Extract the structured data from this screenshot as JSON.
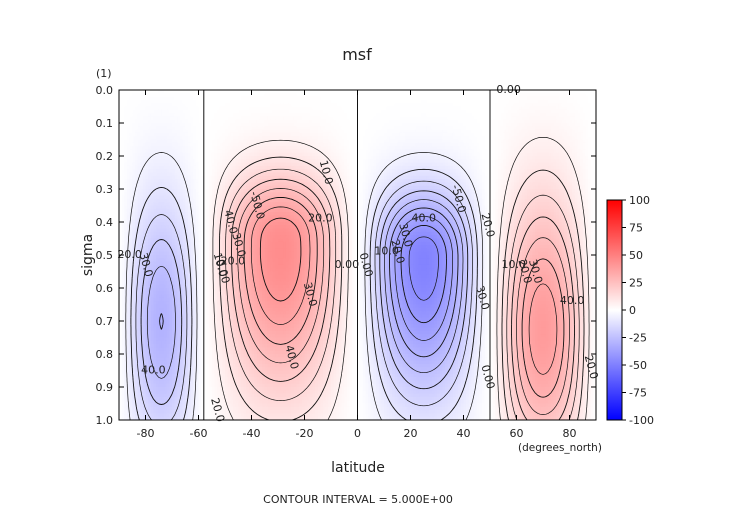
{
  "chart_data": {
    "type": "heatmap",
    "title": "msf",
    "units_label": "(1)",
    "xlabel": "latitude",
    "x_units": "(degrees_north)",
    "ylabel": "sigma",
    "footer": "CONTOUR INTERVAL = 5.000E+00",
    "xlim": [
      -90,
      90
    ],
    "ylim": [
      0.0,
      1.0
    ],
    "y_inverted": true,
    "x_ticks": [
      -80,
      -60,
      -40,
      -20,
      0,
      20,
      40,
      60,
      80
    ],
    "x_tick_labels": [
      "-80",
      "-60",
      "-40",
      "-20",
      "0",
      "20",
      "40",
      "60",
      "80"
    ],
    "y_ticks": [
      0.0,
      0.1,
      0.2,
      0.3,
      0.4,
      0.5,
      0.6,
      0.7,
      0.8,
      0.9,
      1.0
    ],
    "y_tick_labels": [
      "0.0",
      "0.1",
      "0.2",
      "0.3",
      "0.4",
      "0.5",
      "0.6",
      "0.7",
      "0.8",
      "0.9",
      "1.0"
    ],
    "colorbar": {
      "range": [
        -100,
        100
      ],
      "ticks": [
        100,
        75,
        50,
        25,
        0,
        -25,
        -50,
        -75,
        -100
      ],
      "tick_labels": [
        "100",
        "75",
        "50",
        "25",
        "0",
        "-25",
        "-50",
        "-75",
        "-100"
      ],
      "colors": {
        "negative": "#0000ff",
        "zero": "#ffffff",
        "positive": "#ff0000"
      }
    },
    "contour_interval": 5.0,
    "cells": [
      {
        "lat_range": [
          -90,
          -58
        ],
        "center": [
          -78,
          0.75
        ],
        "peak": -45
      },
      {
        "lat_range": [
          -58,
          0
        ],
        "center": [
          -33,
          0.45
        ],
        "peak": 65
      },
      {
        "lat_range": [
          0,
          50
        ],
        "center": [
          33,
          0.5
        ],
        "peak": -70
      },
      {
        "lat_range": [
          50,
          90
        ],
        "center": [
          77,
          0.8
        ],
        "peak": 60
      }
    ],
    "contour_labels": [
      {
        "text": "0.00",
        "lat": 57,
        "sigma": 0.0
      },
      {
        "text": "10.0",
        "lat": -12,
        "sigma": 0.25
      },
      {
        "text": "-50.0",
        "lat": -38,
        "sigma": 0.35
      },
      {
        "text": "20.0",
        "lat": -14,
        "sigma": 0.39
      },
      {
        "text": "40.0",
        "lat": -48,
        "sigma": 0.4
      },
      {
        "text": "30.0",
        "lat": -45,
        "sigma": 0.47
      },
      {
        "text": "20.0",
        "lat": -47,
        "sigma": 0.52
      },
      {
        "text": "10.0",
        "lat": -52,
        "sigma": 0.53
      },
      {
        "text": "0.00",
        "lat": -51,
        "sigma": 0.55
      },
      {
        "text": "20.0",
        "lat": -86,
        "sigma": 0.5
      },
      {
        "text": "30.0",
        "lat": -80,
        "sigma": 0.53
      },
      {
        "text": "30.0",
        "lat": -18,
        "sigma": 0.62
      },
      {
        "text": "0.00",
        "lat": -4,
        "sigma": 0.53
      },
      {
        "text": "0.00",
        "lat": 3,
        "sigma": 0.53
      },
      {
        "text": "40.0",
        "lat": -25,
        "sigma": 0.81
      },
      {
        "text": "40.0",
        "lat": -77,
        "sigma": 0.85
      },
      {
        "text": "20.0",
        "lat": -53,
        "sigma": 0.97
      },
      {
        "text": "-50.0",
        "lat": 38,
        "sigma": 0.33
      },
      {
        "text": "40.0",
        "lat": 25,
        "sigma": 0.39
      },
      {
        "text": "30.0",
        "lat": 18,
        "sigma": 0.44
      },
      {
        "text": "20.0",
        "lat": 15,
        "sigma": 0.49
      },
      {
        "text": "10.0",
        "lat": 11,
        "sigma": 0.49
      },
      {
        "text": "20.0",
        "lat": 49,
        "sigma": 0.41
      },
      {
        "text": "30.0",
        "lat": 47,
        "sigma": 0.63
      },
      {
        "text": "10.0",
        "lat": 59,
        "sigma": 0.53
      },
      {
        "text": "20.0",
        "lat": 63,
        "sigma": 0.55
      },
      {
        "text": "30.0",
        "lat": 67,
        "sigma": 0.55
      },
      {
        "text": "40.0",
        "lat": 81,
        "sigma": 0.64
      },
      {
        "text": "20.0",
        "lat": 88,
        "sigma": 0.84
      },
      {
        "text": "0.00",
        "lat": 49,
        "sigma": 0.87
      }
    ]
  }
}
